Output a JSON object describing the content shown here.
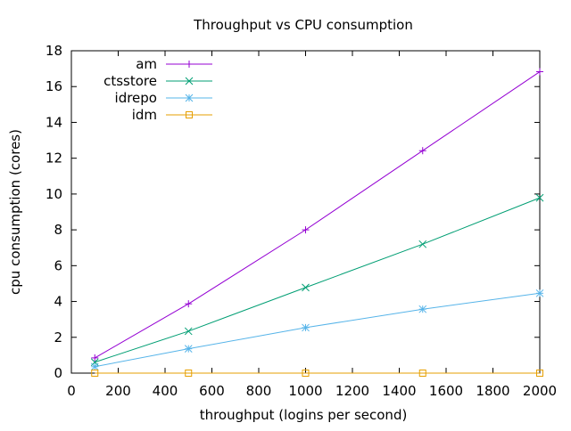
{
  "chart_data": {
    "type": "line",
    "title": "Throughput vs CPU consumption",
    "xlabel": "throughput (logins per second)",
    "ylabel": "cpu consumption (cores)",
    "xlim": [
      0,
      2000
    ],
    "ylim": [
      0,
      18
    ],
    "xticks": [
      0,
      200,
      400,
      600,
      800,
      1000,
      1200,
      1400,
      1600,
      1800,
      2000
    ],
    "yticks": [
      0,
      2,
      4,
      6,
      8,
      10,
      12,
      14,
      16,
      18
    ],
    "grid": false,
    "legend_position": "top-left",
    "x": [
      100,
      500,
      1000,
      1500,
      2000
    ],
    "series": [
      {
        "name": "am",
        "color": "#9400d3",
        "marker": "plus",
        "values": [
          0.85,
          3.87,
          8.0,
          12.42,
          16.83
        ]
      },
      {
        "name": "ctsstore",
        "color": "#009e73",
        "marker": "cross",
        "values": [
          0.61,
          2.34,
          4.78,
          7.2,
          9.79
        ]
      },
      {
        "name": "idrepo",
        "color": "#56b4e9",
        "marker": "star",
        "values": [
          0.36,
          1.36,
          2.54,
          3.57,
          4.46
        ]
      },
      {
        "name": "idm",
        "color": "#e69f00",
        "marker": "square",
        "values": [
          0,
          0,
          0,
          0,
          0
        ]
      }
    ]
  }
}
